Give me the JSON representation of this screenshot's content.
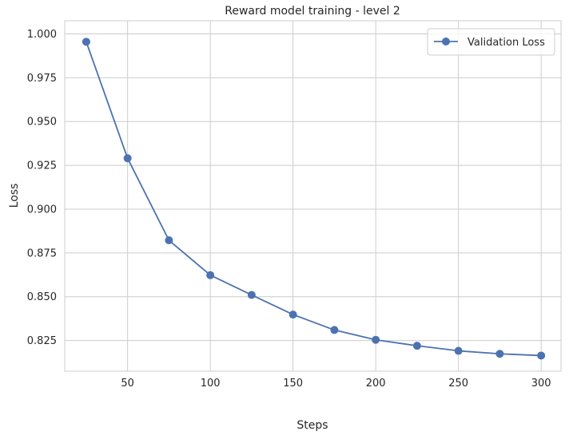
{
  "chart_data": {
    "type": "line",
    "title": "Reward model training - level 2",
    "xlabel": "Steps",
    "ylabel": "Loss",
    "xlim": [
      12,
      312
    ],
    "ylim": [
      0.8075,
      1.0075
    ],
    "xticks": [
      50,
      100,
      150,
      200,
      250,
      300
    ],
    "yticks": [
      0.825,
      0.85,
      0.875,
      0.9,
      0.925,
      0.95,
      0.975,
      1.0
    ],
    "xtick_labels": [
      "50",
      "100",
      "150",
      "200",
      "250",
      "300"
    ],
    "ytick_labels": [
      "0.825",
      "0.850",
      "0.875",
      "0.900",
      "0.925",
      "0.950",
      "0.975",
      "1.000"
    ],
    "grid": true,
    "legend_position": "top-right",
    "series": [
      {
        "name": "Validation Loss",
        "color": "#4c72b0",
        "marker": "circle",
        "x": [
          25,
          50,
          75,
          100,
          125,
          150,
          175,
          200,
          225,
          250,
          275,
          300
        ],
        "y": [
          0.9955,
          0.929,
          0.8822,
          0.8623,
          0.851,
          0.8398,
          0.831,
          0.8254,
          0.822,
          0.8191,
          0.8174,
          0.8164
        ]
      }
    ]
  },
  "colors": {
    "grid": "#cccccc",
    "axes_frame": "#cccccc",
    "text": "#262626",
    "background": "#ffffff"
  }
}
